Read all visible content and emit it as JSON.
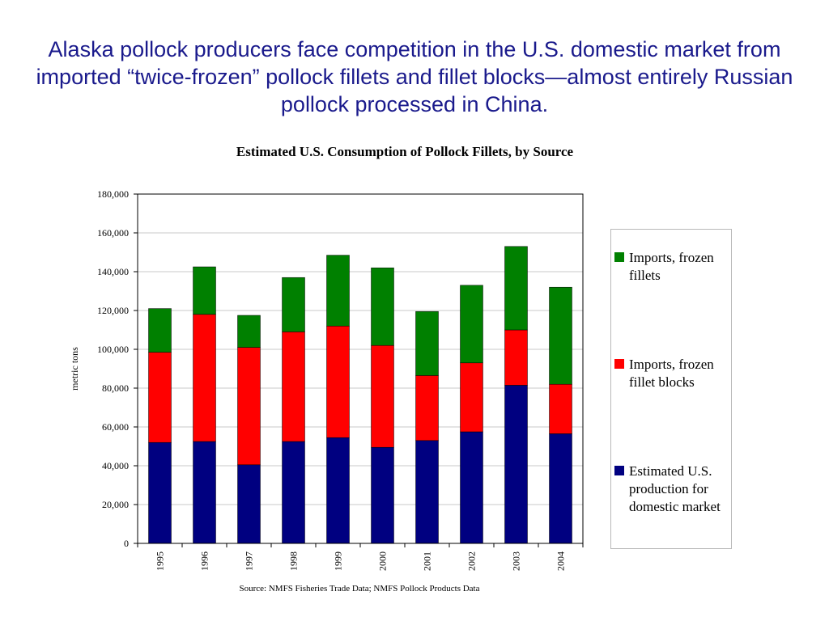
{
  "headline": "Alaska pollock producers face competition in the U.S. domestic market from imported “twice-frozen” pollock fillets and fillet blocks—almost entirely Russian pollock processed in China.",
  "source": "Source:  NMFS Fisheries Trade Data; NMFS Pollock Products Data",
  "chart_data": {
    "type": "bar",
    "stacked": true,
    "title": "Estimated U.S. Consumption of Pollock Fillets, by Source",
    "xlabel": "",
    "ylabel": "metric tons",
    "ylim": [
      0,
      180000
    ],
    "yticks": [
      "0",
      "20,000",
      "40,000",
      "60,000",
      "80,000",
      "100,000",
      "120,000",
      "140,000",
      "160,000",
      "180,000"
    ],
    "categories": [
      "1995",
      "1996",
      "1997",
      "1998",
      "1999",
      "2000",
      "2001",
      "2002",
      "2003",
      "2004"
    ],
    "grid": true,
    "legend_position": "right",
    "series": [
      {
        "name": "Estimated U.S. production for domestic market",
        "color": "#000080",
        "values": [
          52000,
          52500,
          40500,
          52500,
          54500,
          49500,
          53000,
          57500,
          81500,
          56500
        ]
      },
      {
        "name": "Imports, frozen fillet blocks",
        "color": "#ff0000",
        "values": [
          46500,
          65500,
          60500,
          56500,
          57500,
          52500,
          33500,
          35500,
          28500,
          25500
        ]
      },
      {
        "name": "Imports, frozen fillets",
        "color": "#008000",
        "values": [
          22500,
          24500,
          16500,
          28000,
          36500,
          40000,
          33000,
          40000,
          43000,
          50000
        ]
      }
    ]
  },
  "legend": {
    "items": [
      {
        "label": "Imports, frozen fillets",
        "color": "#008000"
      },
      {
        "label": "Imports, frozen fillet blocks",
        "color": "#ff0000"
      },
      {
        "label": "Estimated U.S. production for domestic market",
        "color": "#000080"
      }
    ]
  }
}
